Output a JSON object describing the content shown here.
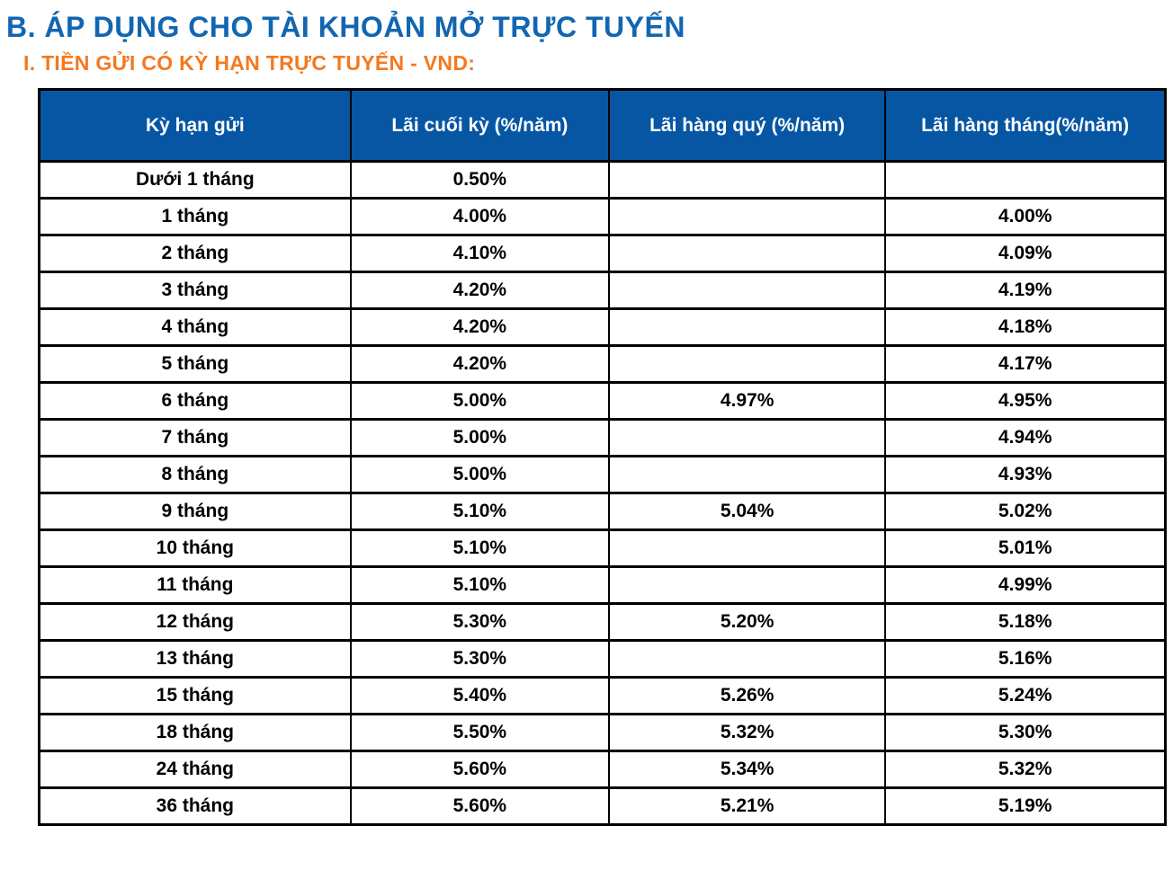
{
  "page": {
    "title": "B. ÁP DỤNG CHO TÀI KHOẢN MỞ TRỰC TUYẾN",
    "subtitle": "I. TIỀN GỬI CÓ KỲ HẠN TRỰC TUYẾN - VND:"
  },
  "colors": {
    "title_blue": "#1266B1",
    "subtitle_orange": "#F4791F",
    "header_bg": "#0656A4",
    "header_text": "#FFFFFF",
    "table_border": "#000000",
    "cell_text": "#000000"
  },
  "table": {
    "headers": [
      "Kỳ hạn gửi",
      "Lãi cuối kỳ (%/năm)",
      "Lãi hàng quý (%/năm)",
      "Lãi hàng tháng(%/năm)"
    ],
    "rows": [
      {
        "term": "Dưới 1 tháng",
        "end_of_term": "0.50%",
        "quarterly": "",
        "monthly": ""
      },
      {
        "term": "1 tháng",
        "end_of_term": "4.00%",
        "quarterly": "",
        "monthly": "4.00%"
      },
      {
        "term": "2 tháng",
        "end_of_term": "4.10%",
        "quarterly": "",
        "monthly": "4.09%"
      },
      {
        "term": "3 tháng",
        "end_of_term": "4.20%",
        "quarterly": "",
        "monthly": "4.19%"
      },
      {
        "term": "4 tháng",
        "end_of_term": "4.20%",
        "quarterly": "",
        "monthly": "4.18%"
      },
      {
        "term": "5 tháng",
        "end_of_term": "4.20%",
        "quarterly": "",
        "monthly": "4.17%"
      },
      {
        "term": "6 tháng",
        "end_of_term": "5.00%",
        "quarterly": "4.97%",
        "monthly": "4.95%"
      },
      {
        "term": "7 tháng",
        "end_of_term": "5.00%",
        "quarterly": "",
        "monthly": "4.94%"
      },
      {
        "term": "8 tháng",
        "end_of_term": "5.00%",
        "quarterly": "",
        "monthly": "4.93%"
      },
      {
        "term": "9 tháng",
        "end_of_term": "5.10%",
        "quarterly": "5.04%",
        "monthly": "5.02%"
      },
      {
        "term": "10 tháng",
        "end_of_term": "5.10%",
        "quarterly": "",
        "monthly": "5.01%"
      },
      {
        "term": "11 tháng",
        "end_of_term": "5.10%",
        "quarterly": "",
        "monthly": "4.99%"
      },
      {
        "term": "12 tháng",
        "end_of_term": "5.30%",
        "quarterly": "5.20%",
        "monthly": "5.18%"
      },
      {
        "term": "13 tháng",
        "end_of_term": "5.30%",
        "quarterly": "",
        "monthly": "5.16%"
      },
      {
        "term": "15 tháng",
        "end_of_term": "5.40%",
        "quarterly": "5.26%",
        "monthly": "5.24%"
      },
      {
        "term": "18 tháng",
        "end_of_term": "5.50%",
        "quarterly": "5.32%",
        "monthly": "5.30%"
      },
      {
        "term": "24 tháng",
        "end_of_term": "5.60%",
        "quarterly": "5.34%",
        "monthly": "5.32%"
      },
      {
        "term": "36 tháng",
        "end_of_term": "5.60%",
        "quarterly": "5.21%",
        "monthly": "5.19%"
      }
    ]
  }
}
